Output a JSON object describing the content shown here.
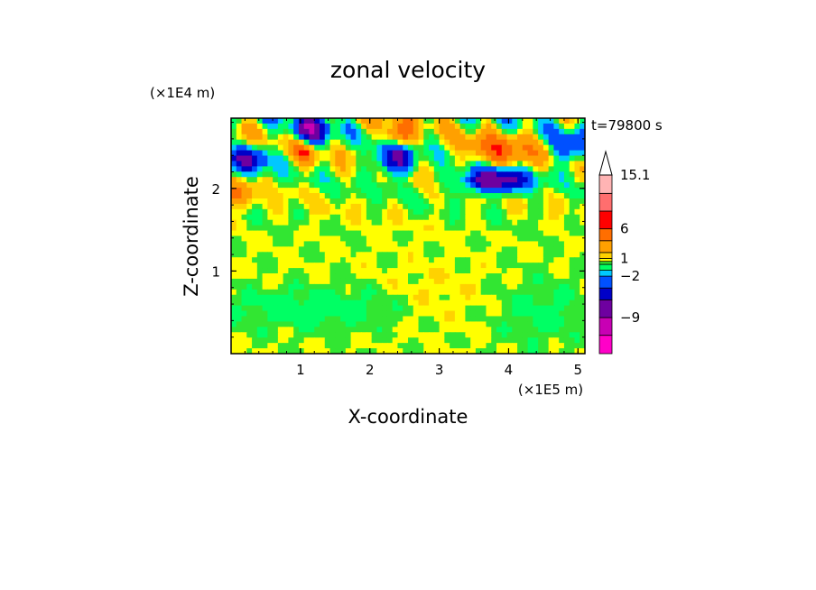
{
  "chart_data": {
    "type": "heatmap",
    "title": "zonal velocity",
    "xlabel": "X-coordinate",
    "ylabel": "Z-coordinate",
    "x_scale_label": "(×1E5 m)",
    "y_scale_label": "(×1E4 m)",
    "time_label": "t=79800 s",
    "xlim": [
      0,
      5.1
    ],
    "ylim": [
      0,
      2.85
    ],
    "x_ticks": [
      1,
      2,
      3,
      4,
      5
    ],
    "y_ticks": [
      1,
      2
    ],
    "colorbar": {
      "tick_labels": [
        {
          "value": 15.1,
          "label": "15.1"
        },
        {
          "value": 6,
          "label": "6"
        },
        {
          "value": 1,
          "label": "1"
        },
        {
          "value": -2,
          "label": "−2"
        },
        {
          "value": -9,
          "label": "−9"
        }
      ],
      "extend": "max",
      "levels": [
        {
          "min": -15.1,
          "max": -12,
          "color": "#ff00c8"
        },
        {
          "min": -12,
          "max": -9,
          "color": "#c800b4"
        },
        {
          "min": -9,
          "max": -6,
          "color": "#6e00a0"
        },
        {
          "min": -6,
          "max": -4,
          "color": "#0000c8"
        },
        {
          "min": -4,
          "max": -2,
          "color": "#0050ff"
        },
        {
          "min": -2,
          "max": -1,
          "color": "#00c8ff"
        },
        {
          "min": -1,
          "max": 0,
          "color": "#00ff64"
        },
        {
          "min": 0,
          "max": 0.5,
          "color": "#32e632"
        },
        {
          "min": 0.5,
          "max": 1,
          "color": "#ffff00"
        },
        {
          "min": 1,
          "max": 2,
          "color": "#ffd200"
        },
        {
          "min": 2,
          "max": 4,
          "color": "#ffa000"
        },
        {
          "min": 4,
          "max": 6,
          "color": "#ff6e00"
        },
        {
          "min": 6,
          "max": 9,
          "color": "#ff0000"
        },
        {
          "min": 9,
          "max": 12,
          "color": "#ff6e6e"
        },
        {
          "min": 12,
          "max": 15.1,
          "color": "#ffb4b4"
        }
      ]
    }
  }
}
